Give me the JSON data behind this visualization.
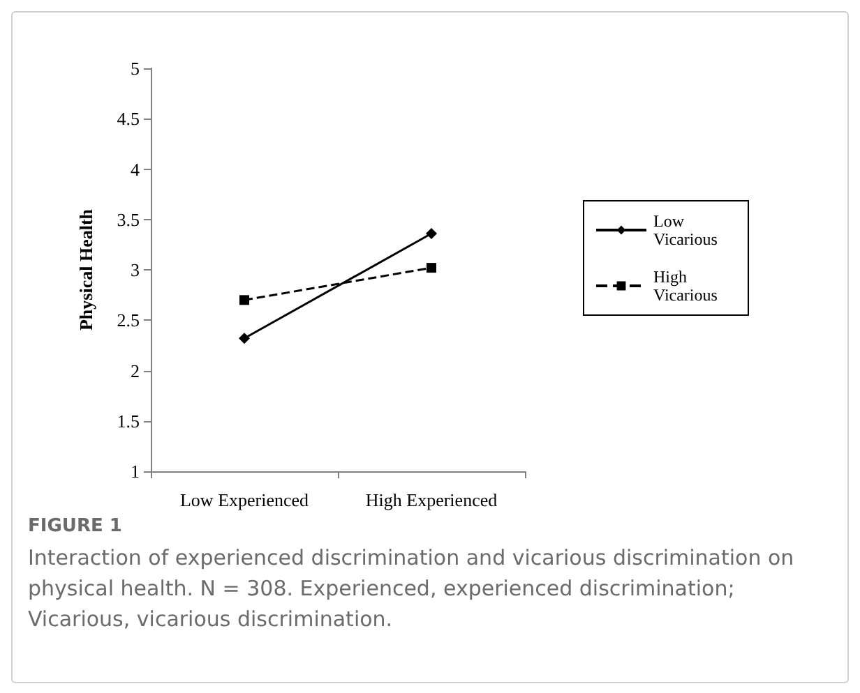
{
  "chart_data": {
    "type": "line",
    "categories": [
      "Low Experienced",
      "High Experienced"
    ],
    "ylabel": "Physical Health",
    "ylim": [
      1,
      5
    ],
    "yticks": [
      1,
      1.5,
      2,
      2.5,
      3,
      3.5,
      4,
      4.5,
      5
    ],
    "series": [
      {
        "name": "Low Vicarious",
        "color": "#000000",
        "values": [
          2.32,
          3.36
        ],
        "marker": "diamond",
        "line_style": "solid"
      },
      {
        "name": "High Vicarious",
        "color": "#000000",
        "values": [
          2.7,
          3.02
        ],
        "marker": "square",
        "line_style": "dashed"
      }
    ],
    "grid": false,
    "legend": "right",
    "annotations": [
      "FIGURE 1",
      "Interaction of experienced discrimination and vicarious discrimination on physical health. N = 308. Experienced, experienced discrimination; Vicarious, vicarious discrimination."
    ]
  }
}
